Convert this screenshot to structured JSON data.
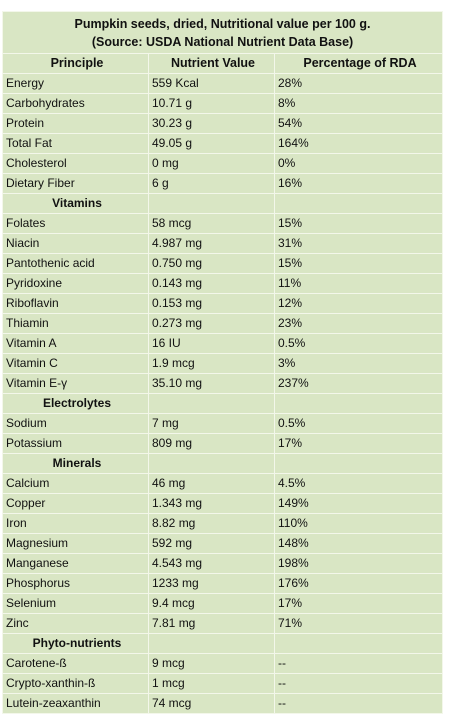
{
  "table": {
    "title_line1": "Pumpkin seeds, dried, Nutritional value per 100 g.",
    "title_line2": "(Source: USDA National Nutrient Data Base)",
    "headers": [
      "Principle",
      "Nutrient Value",
      "Percentage of RDA"
    ],
    "general": [
      [
        "Energy",
        "559 Kcal",
        "28%"
      ],
      [
        "Carbohydrates",
        "10.71 g",
        "8%"
      ],
      [
        "Protein",
        "30.23 g",
        "54%"
      ],
      [
        "Total Fat",
        "49.05 g",
        "164%"
      ],
      [
        "Cholesterol",
        "0 mg",
        "0%"
      ],
      [
        "Dietary Fiber",
        "6 g",
        "16%"
      ]
    ],
    "sections": [
      {
        "label": "Vitamins",
        "rows": [
          [
            "Folates",
            "58 mcg",
            "15%"
          ],
          [
            "Niacin",
            "4.987 mg",
            "31%"
          ],
          [
            "Pantothenic acid",
            "0.750 mg",
            "15%"
          ],
          [
            "Pyridoxine",
            "0.143 mg",
            "11%"
          ],
          [
            "Riboflavin",
            "0.153 mg",
            "12%"
          ],
          [
            "Thiamin",
            "0.273 mg",
            "23%"
          ],
          [
            "Vitamin A",
            "16 IU",
            "0.5%"
          ],
          [
            "Vitamin C",
            "1.9 mcg",
            "3%"
          ],
          [
            "Vitamin E-γ",
            "35.10 mg",
            "237%"
          ]
        ]
      },
      {
        "label": "Electrolytes",
        "rows": [
          [
            "Sodium",
            "7 mg",
            "0.5%"
          ],
          [
            "Potassium",
            "809 mg",
            "17%"
          ]
        ]
      },
      {
        "label": "Minerals",
        "rows": [
          [
            "Calcium",
            "46 mg",
            "4.5%"
          ],
          [
            "Copper",
            "1.343 mg",
            "149%"
          ],
          [
            "Iron",
            "8.82 mg",
            "110%"
          ],
          [
            "Magnesium",
            "592 mg",
            "148%"
          ],
          [
            "Manganese",
            "4.543 mg",
            "198%"
          ],
          [
            "Phosphorus",
            "1233 mg",
            "176%"
          ],
          [
            "Selenium",
            "9.4 mcg",
            "17%"
          ],
          [
            "Zinc",
            "7.81 mg",
            "71%"
          ]
        ]
      },
      {
        "label": "Phyto-nutrients",
        "rows": [
          [
            "Carotene-ß",
            "9 mcg",
            "--"
          ],
          [
            "Crypto-xanthin-ß",
            "1 mcg",
            "--"
          ],
          [
            "Lutein-zeaxanthin",
            "74 mcg",
            "--"
          ]
        ]
      }
    ],
    "colors": {
      "cell_background": "#d9e6c4",
      "grid_lines": "#f3f7ea",
      "text": "#111111"
    }
  }
}
